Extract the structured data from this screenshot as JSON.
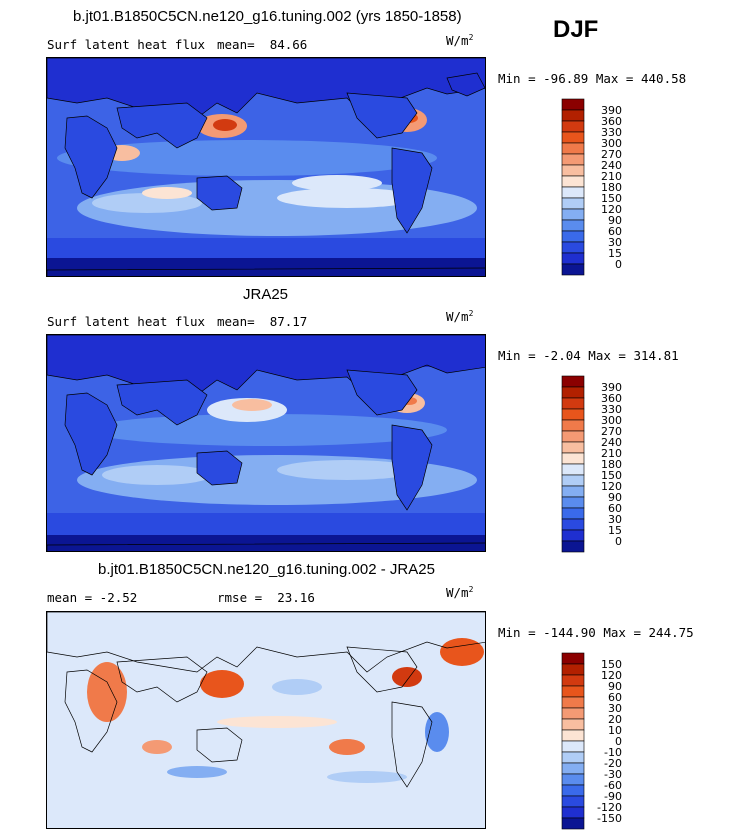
{
  "season": "DJF",
  "units": {
    "base": "W/m",
    "exp": "2"
  },
  "panels": [
    {
      "title": "b.jt01.B1850C5CN.ne120_g16.tuning.002 (yrs 1850-1858)",
      "left_label": "Surf latent heat flux",
      "stat_label": "mean=",
      "stat_value": "84.66",
      "minmax": "Min = -96.89 Max = 440.58",
      "colorbar_levels": [
        "390",
        "360",
        "330",
        "300",
        "270",
        "240",
        "210",
        "180",
        "150",
        "120",
        "90",
        "60",
        "30",
        "15",
        "0"
      ],
      "colorbar_colors": [
        "#8b0000",
        "#b22000",
        "#d23a10",
        "#e8551c",
        "#f07a4a",
        "#f49a74",
        "#f8bea0",
        "#fce4d4",
        "#dce8fa",
        "#b0cdf6",
        "#84aef2",
        "#5a8cee",
        "#3a6aea",
        "#2a4ae0",
        "#1f2fd0",
        "#0b1593"
      ],
      "chart_data": {
        "type": "heatmap",
        "description_source": "model DJF surface latent heat flux map",
        "mean": 84.66,
        "min": -96.89,
        "max": 440.58,
        "levels": [
          0,
          15,
          30,
          60,
          90,
          120,
          150,
          180,
          210,
          240,
          270,
          300,
          330,
          360,
          390
        ]
      }
    },
    {
      "title": "JRA25",
      "left_label": "Surf latent heat flux",
      "stat_label": "mean=",
      "stat_value": "87.17",
      "minmax": "Min = -2.04 Max = 314.81",
      "colorbar_levels": [
        "390",
        "360",
        "330",
        "300",
        "270",
        "240",
        "210",
        "180",
        "150",
        "120",
        "90",
        "60",
        "30",
        "15",
        "0"
      ],
      "colorbar_colors": [
        "#8b0000",
        "#b22000",
        "#d23a10",
        "#e8551c",
        "#f07a4a",
        "#f49a74",
        "#f8bea0",
        "#fce4d4",
        "#dce8fa",
        "#b0cdf6",
        "#84aef2",
        "#5a8cee",
        "#3a6aea",
        "#2a4ae0",
        "#1f2fd0",
        "#0b1593"
      ],
      "chart_data": {
        "type": "heatmap",
        "mean": 87.17,
        "min": -2.04,
        "max": 314.81,
        "levels": [
          0,
          15,
          30,
          60,
          90,
          120,
          150,
          180,
          210,
          240,
          270,
          300,
          330,
          360,
          390
        ]
      }
    },
    {
      "title": "b.jt01.B1850C5CN.ne120_g16.tuning.002 - JRA25",
      "left_label": "mean = -2.52",
      "stat_label": "rmse =",
      "stat_value": "23.16",
      "minmax": "Min = -144.90 Max = 244.75",
      "colorbar_levels": [
        "150",
        "120",
        "90",
        "60",
        "30",
        "20",
        "10",
        "0",
        "-10",
        "-20",
        "-30",
        "-60",
        "-90",
        "-120",
        "-150"
      ],
      "colorbar_colors": [
        "#8b0000",
        "#b22000",
        "#d23a10",
        "#e8551c",
        "#f07a4a",
        "#f49a74",
        "#f8bea0",
        "#fce4d4",
        "#dce8fa",
        "#b0cdf6",
        "#84aef2",
        "#5a8cee",
        "#3a6aea",
        "#2a4ae0",
        "#1f2fd0",
        "#0b1593"
      ],
      "chart_data": {
        "type": "heatmap",
        "mean": -2.52,
        "rmse": 23.16,
        "min": -144.9,
        "max": 244.75,
        "levels": [
          -150,
          -120,
          -90,
          -60,
          -30,
          -20,
          -10,
          0,
          10,
          20,
          30,
          60,
          90,
          120,
          150
        ]
      }
    }
  ]
}
